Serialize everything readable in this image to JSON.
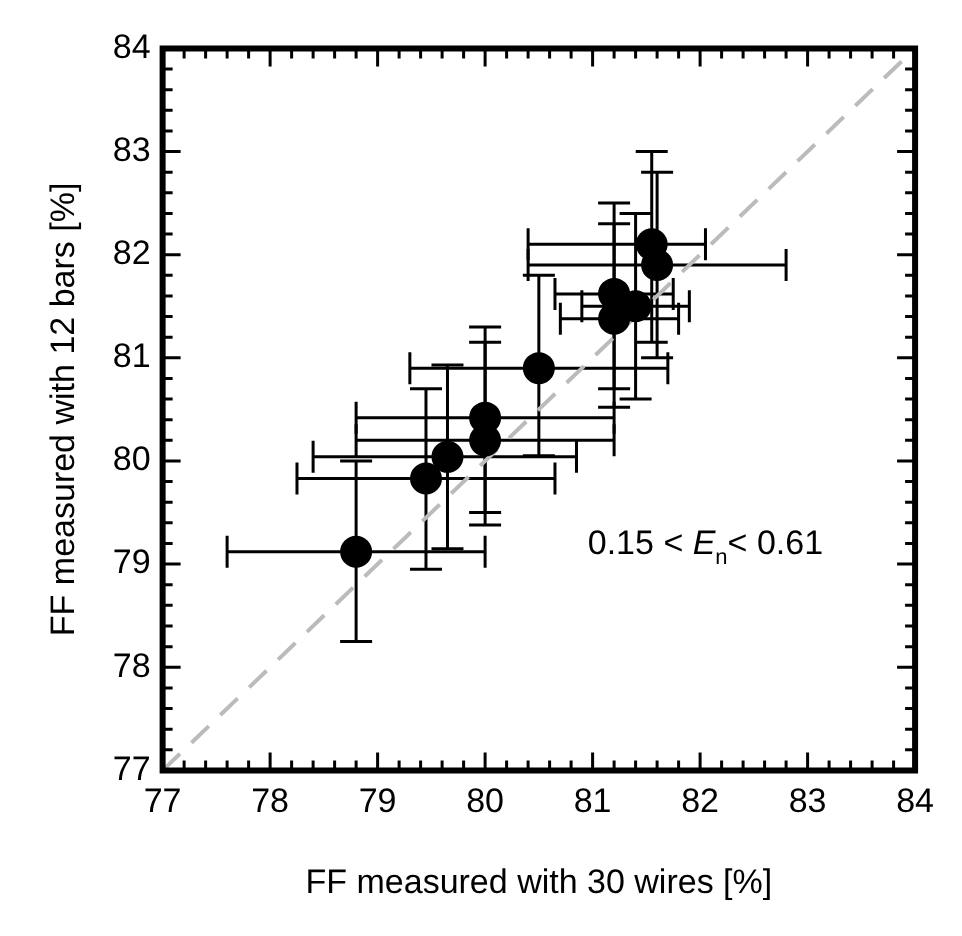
{
  "chart_data": {
    "type": "scatter",
    "xlabel": "FF measured with 30 wires [%]",
    "ylabel": "FF measured with 12 bars [%]",
    "xlim": [
      77,
      84
    ],
    "ylim": [
      77,
      84
    ],
    "xticks": [
      77,
      78,
      79,
      80,
      81,
      82,
      83,
      84
    ],
    "yticks": [
      77,
      78,
      79,
      80,
      81,
      82,
      83,
      84
    ],
    "grid": false,
    "legend": false,
    "marker": "circle",
    "annotations": [
      "0.15 < E$_{n}$< 0.61"
    ],
    "series": [
      {
        "type": "scatter",
        "color": "#000000",
        "x": [
          78.8,
          79.45,
          79.65,
          80.0,
          80.0,
          80.5,
          81.2,
          81.2,
          81.4,
          81.55,
          81.6
        ],
        "values": [
          79.12,
          79.83,
          80.04,
          80.42,
          80.2,
          80.9,
          81.62,
          81.38,
          81.5,
          82.1,
          81.9
        ],
        "errors": [
          [
            78.25,
            80.0
          ],
          [
            78.95,
            80.7
          ],
          [
            79.15,
            80.93
          ],
          [
            79.5,
            81.3
          ],
          [
            79.38,
            81.15
          ],
          [
            80.05,
            81.8
          ],
          [
            80.7,
            82.5
          ],
          [
            80.52,
            82.3
          ],
          [
            80.6,
            82.4
          ],
          [
            81.15,
            83.0
          ],
          [
            81.0,
            82.8
          ]
        ],
        "xerrors": [
          [
            77.6,
            80.0
          ],
          [
            78.25,
            80.65
          ],
          [
            78.4,
            80.85
          ],
          [
            78.8,
            81.2
          ],
          [
            78.8,
            81.2
          ],
          [
            79.3,
            81.7
          ],
          [
            80.65,
            81.75
          ],
          [
            80.7,
            81.8
          ],
          [
            80.9,
            81.9
          ],
          [
            80.4,
            82.05
          ],
          [
            80.4,
            82.8
          ]
        ]
      },
      {
        "type": "line",
        "color": "#bbbbbb",
        "line_style": "dashed",
        "marker": "none",
        "x": [
          77,
          84
        ],
        "values": [
          77,
          84
        ]
      }
    ]
  }
}
